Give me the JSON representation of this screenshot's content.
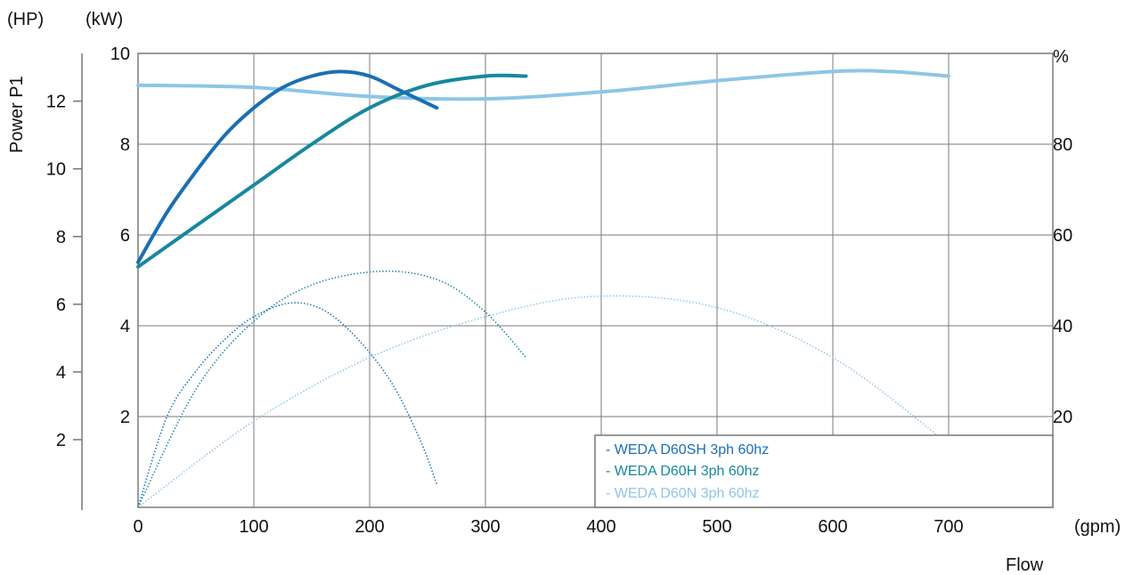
{
  "chart_data": {
    "type": "line",
    "units": {
      "hp": "(HP)",
      "kw": "(kW)",
      "percent": "%",
      "flow": "(gpm)"
    },
    "ylabel": "Power P1",
    "xlabel": "Flow",
    "x_ticks": [
      "0",
      "100",
      "200",
      "300",
      "400",
      "500",
      "600",
      "700"
    ],
    "kw_ticks": [
      "2",
      "4",
      "6",
      "8",
      "10"
    ],
    "hp_ticks": [
      "2",
      "4",
      "6",
      "8",
      "10",
      "12"
    ],
    "pct_ticks": [
      "20",
      "40",
      "60",
      "80"
    ],
    "xlim": [
      0,
      790
    ],
    "kw_lim": [
      0,
      10
    ],
    "grid": true,
    "legend_position": "bottom-right",
    "colors": {
      "sh": "#1a6fb3",
      "h": "#16889e",
      "n": "#8ec6e6",
      "grid": "#7a7a7a"
    },
    "series": [
      {
        "name": "- WEDA D60SH 3ph 60hz",
        "color_key": "sh",
        "efficiency_pct": {
          "x": [
            0,
            25,
            50,
            75,
            100,
            125,
            150,
            175,
            200,
            225,
            258
          ],
          "y": [
            54,
            65,
            74,
            82,
            88,
            92.5,
            95,
            96,
            95,
            92,
            88
          ]
        },
        "power_kw": {
          "x": [
            0,
            25,
            50,
            75,
            100,
            131,
            160,
            190,
            220,
            245,
            258
          ],
          "y": [
            0,
            2.0,
            3.0,
            3.7,
            4.2,
            4.5,
            4.35,
            3.7,
            2.7,
            1.4,
            0.5
          ]
        }
      },
      {
        "name": "- WEDA D60H 3ph 60hz",
        "color_key": "h",
        "efficiency_pct": {
          "x": [
            0,
            50,
            100,
            150,
            200,
            250,
            300,
            335
          ],
          "y": [
            53,
            62,
            71,
            80,
            88,
            93,
            95,
            95
          ]
        },
        "power_kw": {
          "x": [
            0,
            50,
            100,
            150,
            210,
            260,
            300,
            335
          ],
          "y": [
            0,
            2.6,
            4.1,
            4.9,
            5.2,
            5.0,
            4.3,
            3.3
          ]
        }
      },
      {
        "name": "- WEDA D60N 3ph 60hz",
        "color_key": "n",
        "efficiency_pct": {
          "x": [
            0,
            100,
            200,
            300,
            400,
            500,
            600,
            650,
            700
          ],
          "y": [
            93,
            92.5,
            90.5,
            90,
            91.5,
            94,
            96,
            96,
            95
          ]
        },
        "power_kw": {
          "x": [
            0,
            100,
            200,
            300,
            395,
            500,
            600,
            690
          ],
          "y": [
            0,
            1.9,
            3.3,
            4.2,
            4.65,
            4.4,
            3.3,
            1.6
          ]
        }
      }
    ]
  }
}
